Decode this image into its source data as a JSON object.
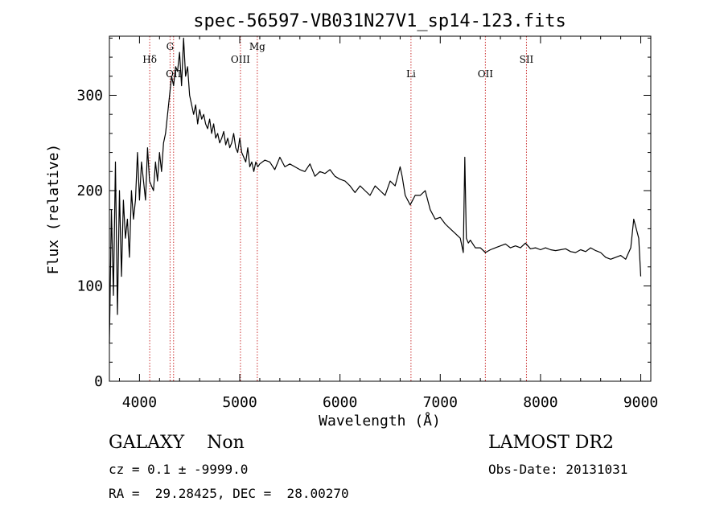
{
  "chart_data": {
    "type": "line",
    "title": "spec-56597-VB031N27V1_sp14-123.fits",
    "xlabel": "Wavelength (Å)",
    "ylabel": "Flux (relative)",
    "xlim": [
      3700,
      9100
    ],
    "ylim": [
      0,
      362
    ],
    "xticks": [
      4000,
      5000,
      6000,
      7000,
      8000,
      9000
    ],
    "yticks": [
      0,
      100,
      200,
      300
    ],
    "grid": false,
    "series": [
      {
        "x": [
          3700,
          3720,
          3740,
          3760,
          3780,
          3800,
          3820,
          3840,
          3860,
          3880,
          3900,
          3920,
          3940,
          3960,
          3980,
          4000,
          4020,
          4040,
          4060,
          4080,
          4100,
          4120,
          4140,
          4160,
          4180,
          4200,
          4220,
          4240,
          4260,
          4280,
          4300,
          4320,
          4340,
          4360,
          4380,
          4400,
          4420,
          4440,
          4460,
          4480,
          4500,
          4520,
          4540,
          4560,
          4580,
          4600,
          4620,
          4640,
          4660,
          4680,
          4700,
          4720,
          4740,
          4760,
          4780,
          4800,
          4820,
          4840,
          4860,
          4880,
          4900,
          4920,
          4940,
          4960,
          4980,
          5000,
          5020,
          5040,
          5060,
          5080,
          5100,
          5120,
          5140,
          5160,
          5180,
          5200,
          5250,
          5300,
          5350,
          5400,
          5450,
          5500,
          5550,
          5600,
          5650,
          5700,
          5750,
          5800,
          5850,
          5900,
          5950,
          6000,
          6050,
          6100,
          6150,
          6200,
          6250,
          6300,
          6350,
          6400,
          6450,
          6500,
          6550,
          6600,
          6620,
          6650,
          6700,
          6750,
          6800,
          6850,
          6900,
          6950,
          7000,
          7050,
          7100,
          7150,
          7200,
          7230,
          7245,
          7260,
          7280,
          7300,
          7350,
          7400,
          7450,
          7500,
          7550,
          7600,
          7650,
          7700,
          7750,
          7800,
          7850,
          7900,
          7950,
          8000,
          8050,
          8100,
          8150,
          8200,
          8250,
          8300,
          8350,
          8400,
          8450,
          8500,
          8550,
          8600,
          8650,
          8700,
          8750,
          8800,
          8850,
          8900,
          8930,
          8950,
          8980,
          9000
        ],
        "y": [
          40,
          180,
          90,
          230,
          70,
          200,
          110,
          190,
          150,
          170,
          130,
          200,
          170,
          190,
          240,
          190,
          230,
          210,
          190,
          245,
          210,
          205,
          200,
          230,
          210,
          240,
          220,
          250,
          260,
          280,
          300,
          320,
          310,
          330,
          325,
          345,
          310,
          360,
          320,
          330,
          300,
          290,
          280,
          290,
          270,
          285,
          275,
          280,
          270,
          265,
          275,
          260,
          270,
          255,
          260,
          250,
          255,
          262,
          248,
          255,
          245,
          250,
          260,
          245,
          240,
          255,
          240,
          235,
          230,
          245,
          225,
          230,
          220,
          230,
          225,
          228,
          232,
          230,
          222,
          235,
          225,
          228,
          225,
          222,
          220,
          228,
          215,
          220,
          218,
          222,
          215,
          212,
          210,
          205,
          198,
          205,
          200,
          195,
          205,
          200,
          195,
          210,
          205,
          225,
          215,
          195,
          185,
          195,
          195,
          200,
          180,
          170,
          172,
          165,
          160,
          155,
          150,
          135,
          235,
          150,
          145,
          148,
          140,
          140,
          135,
          138,
          140,
          142,
          144,
          140,
          142,
          140,
          145,
          139,
          140,
          138,
          140,
          138,
          137,
          138,
          139,
          136,
          135,
          138,
          136,
          140,
          137,
          135,
          130,
          128,
          130,
          132,
          128,
          140,
          170,
          162,
          150,
          110
        ]
      }
    ],
    "lines": [
      {
        "label": "Hδ",
        "x": 4102,
        "label_row": 1
      },
      {
        "label": "G",
        "x": 4305,
        "label_row": 0
      },
      {
        "label": "OII",
        "x": 4340,
        "label_row": 2
      },
      {
        "label": "OIII",
        "x": 5007,
        "label_row": 1
      },
      {
        "label": "Mg",
        "x": 5175,
        "label_row": 0
      },
      {
        "label": "Li",
        "x": 6708,
        "label_row": 2
      },
      {
        "label": "OII",
        "x": 7450,
        "label_row": 2
      },
      {
        "label": "SII",
        "x": 7860,
        "label_row": 1
      }
    ]
  },
  "info": {
    "class_line": "GALAXY    Non",
    "survey": "LAMOST DR2",
    "cz": "cz = 0.1 ± -9999.0",
    "obs_date": "Obs-Date: 20131031",
    "radec": "RA =  29.28425, DEC =  28.00270"
  },
  "colors": {
    "spectrum": "#000000",
    "lines": "#cc3333"
  }
}
